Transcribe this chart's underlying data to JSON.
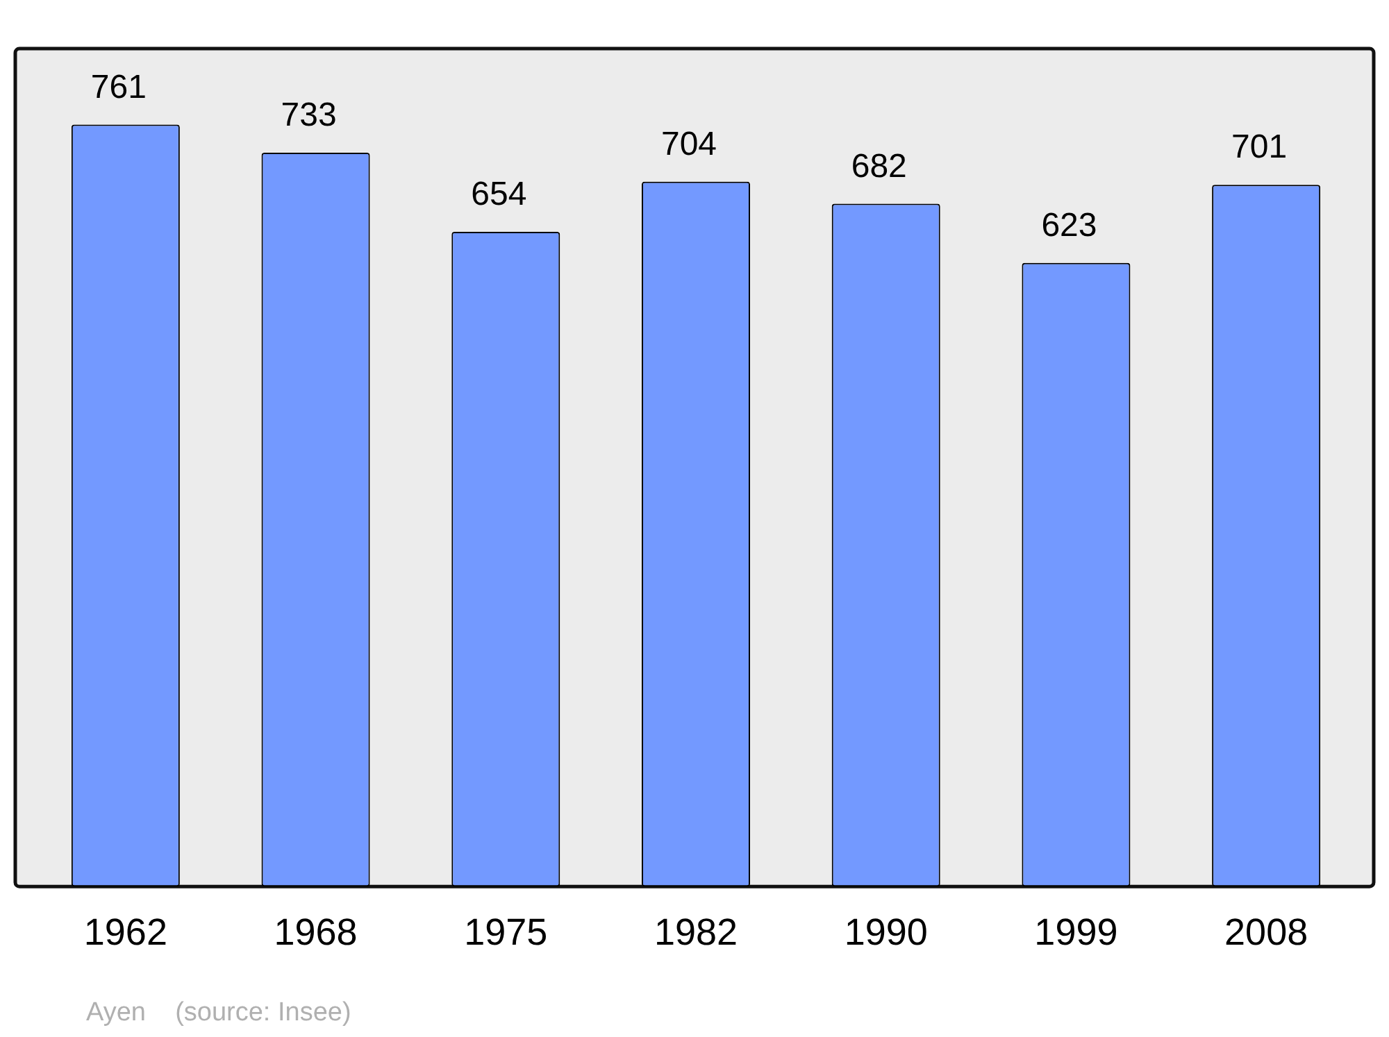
{
  "chart_data": {
    "type": "bar",
    "categories": [
      "1962",
      "1968",
      "1975",
      "1982",
      "1990",
      "1999",
      "2008"
    ],
    "values": [
      761,
      733,
      654,
      704,
      682,
      623,
      701
    ],
    "color": "#7399ff",
    "ylim": [
      0,
      837
    ],
    "data_labels": true,
    "tick_labels": "x",
    "grid": false,
    "legend": false,
    "annotations": [
      "Ayen    (source: Insee)"
    ]
  }
}
